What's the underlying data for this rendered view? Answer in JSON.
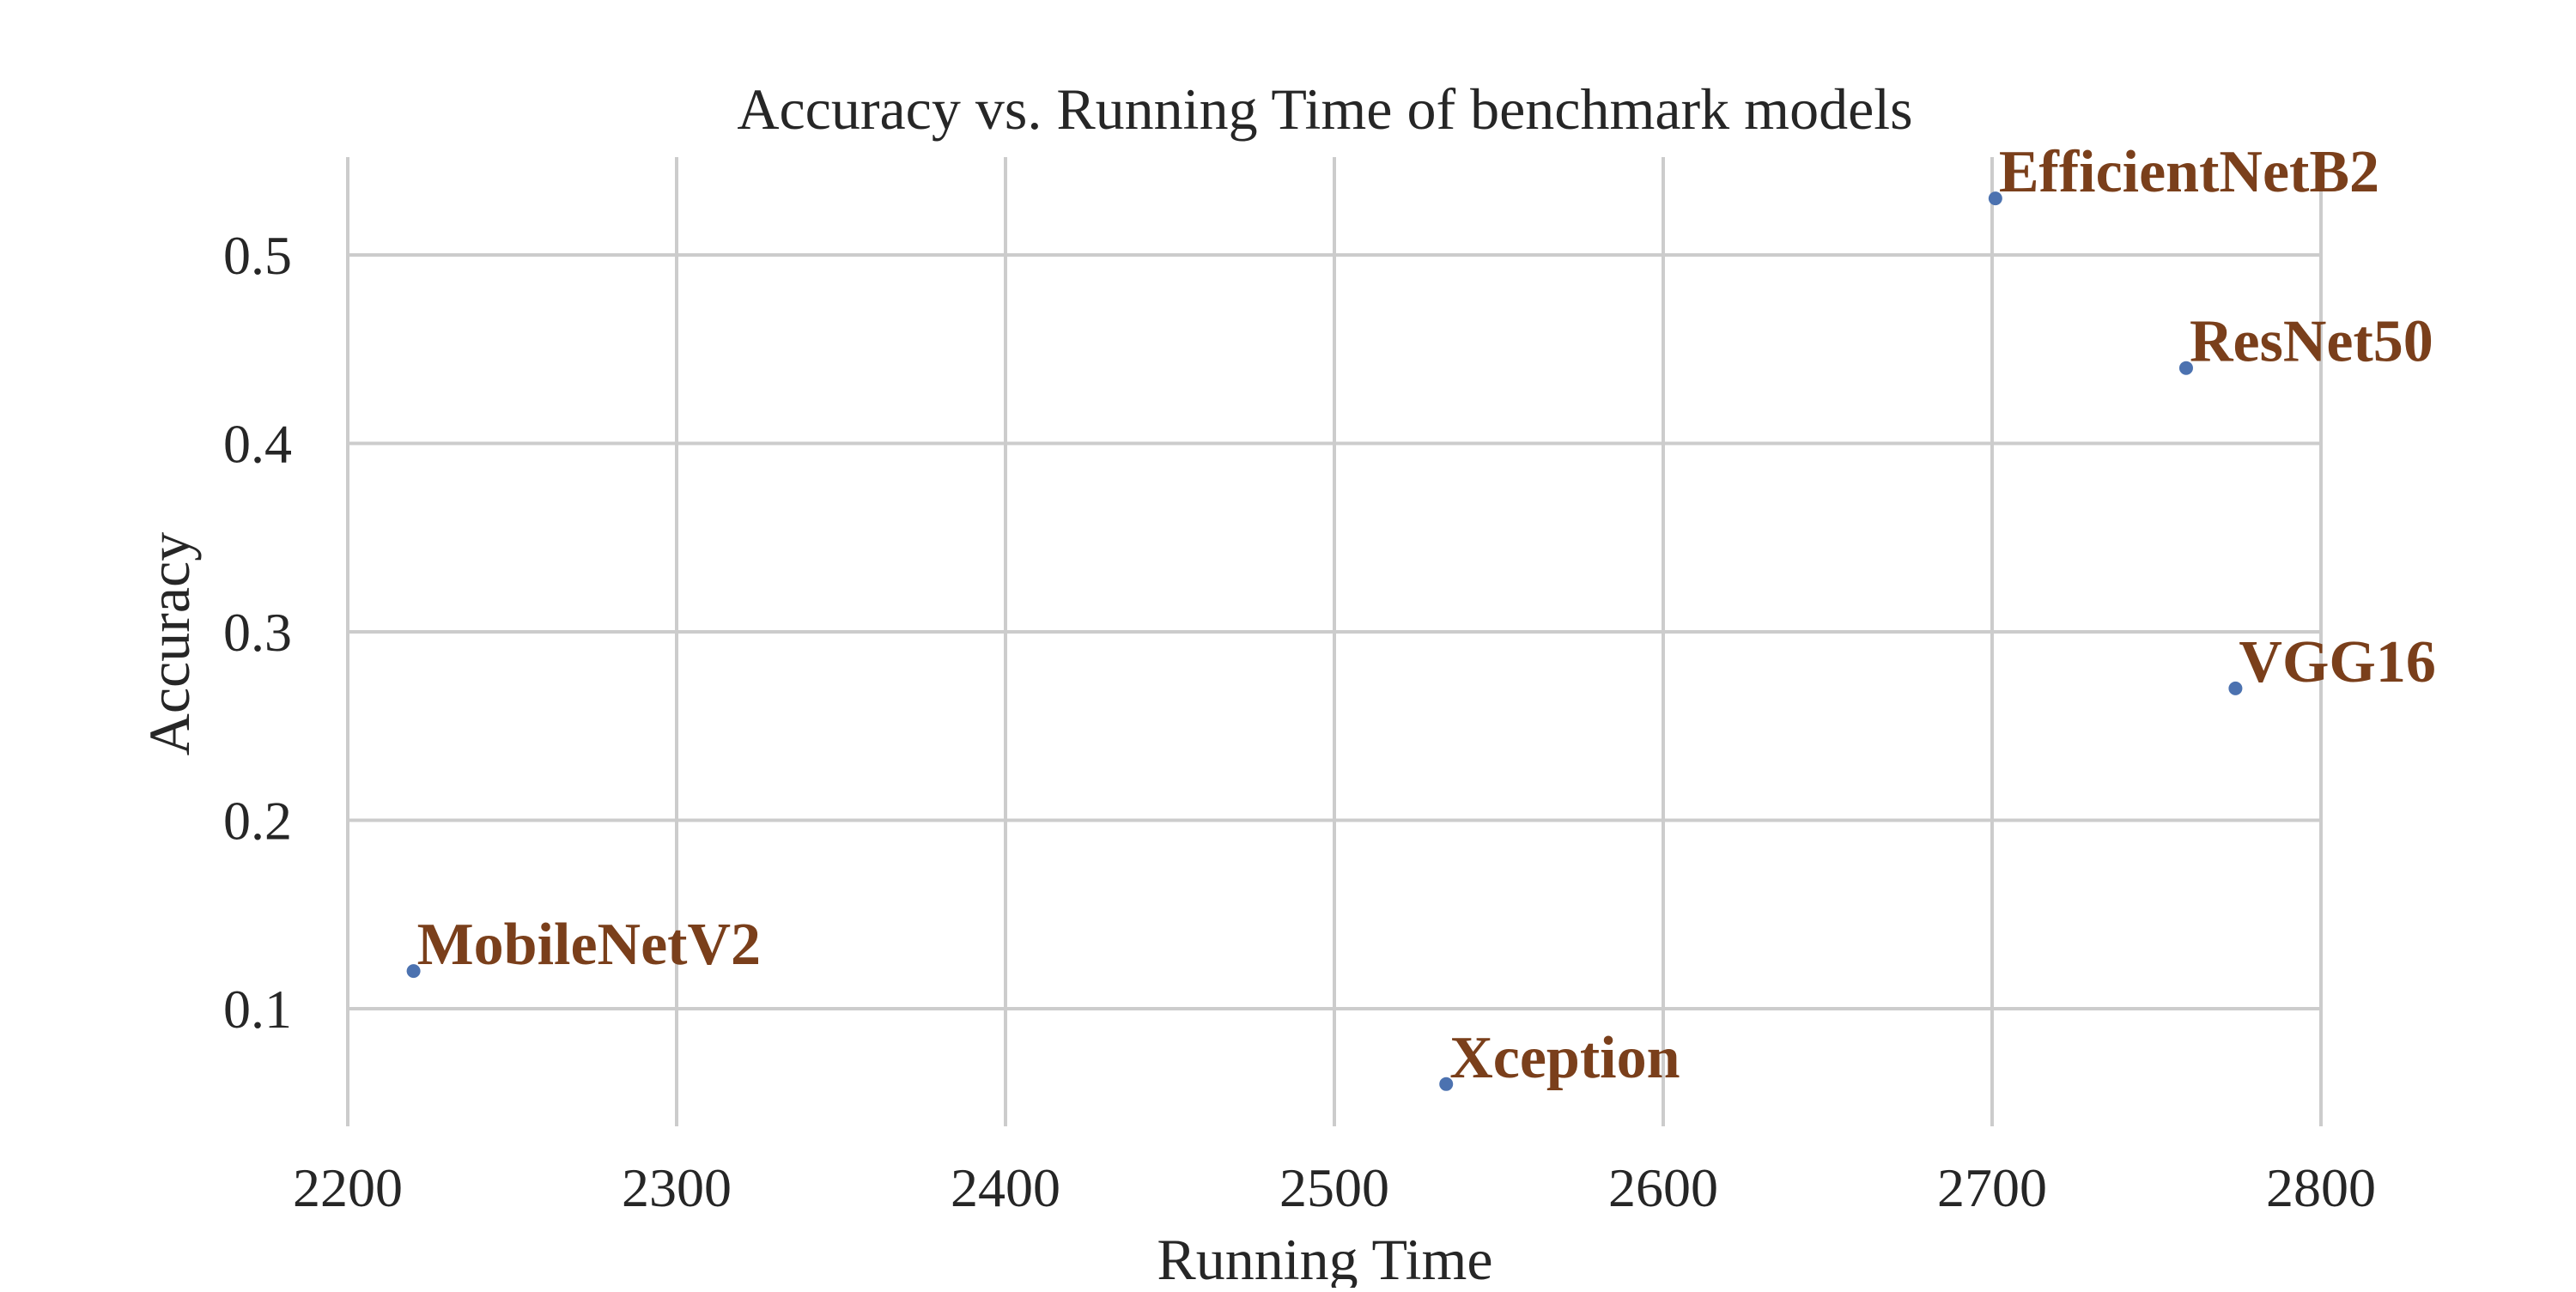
{
  "chart_data": {
    "type": "scatter",
    "title": "Accuracy vs. Running Time of benchmark models",
    "xlabel": "Running Time",
    "ylabel": "Accuracy",
    "xlim": [
      2200,
      2800
    ],
    "ylim": [
      0.1,
      0.5
    ],
    "xticks": [
      2200,
      2300,
      2400,
      2500,
      2600,
      2700,
      2800
    ],
    "yticks": [
      0.1,
      0.2,
      0.3,
      0.4,
      0.5
    ],
    "xtick_labels": [
      "2200",
      "2300",
      "2400",
      "2500",
      "2600",
      "2700",
      "2800"
    ],
    "ytick_labels": [
      "0.1",
      "0.2",
      "0.3",
      "0.4",
      "0.5"
    ],
    "grid": true,
    "legend": "none",
    "points": [
      {
        "label": "EfficientNetB2",
        "x": 2701,
        "y": 0.53
      },
      {
        "label": "ResNet50",
        "x": 2759,
        "y": 0.44
      },
      {
        "label": "VGG16",
        "x": 2774,
        "y": 0.27
      },
      {
        "label": "MobileNetV2",
        "x": 2220,
        "y": 0.12
      },
      {
        "label": "Xception",
        "x": 2534,
        "y": 0.06
      }
    ],
    "point_color": "#4c72b0",
    "label_color": "#7a3f1b"
  }
}
